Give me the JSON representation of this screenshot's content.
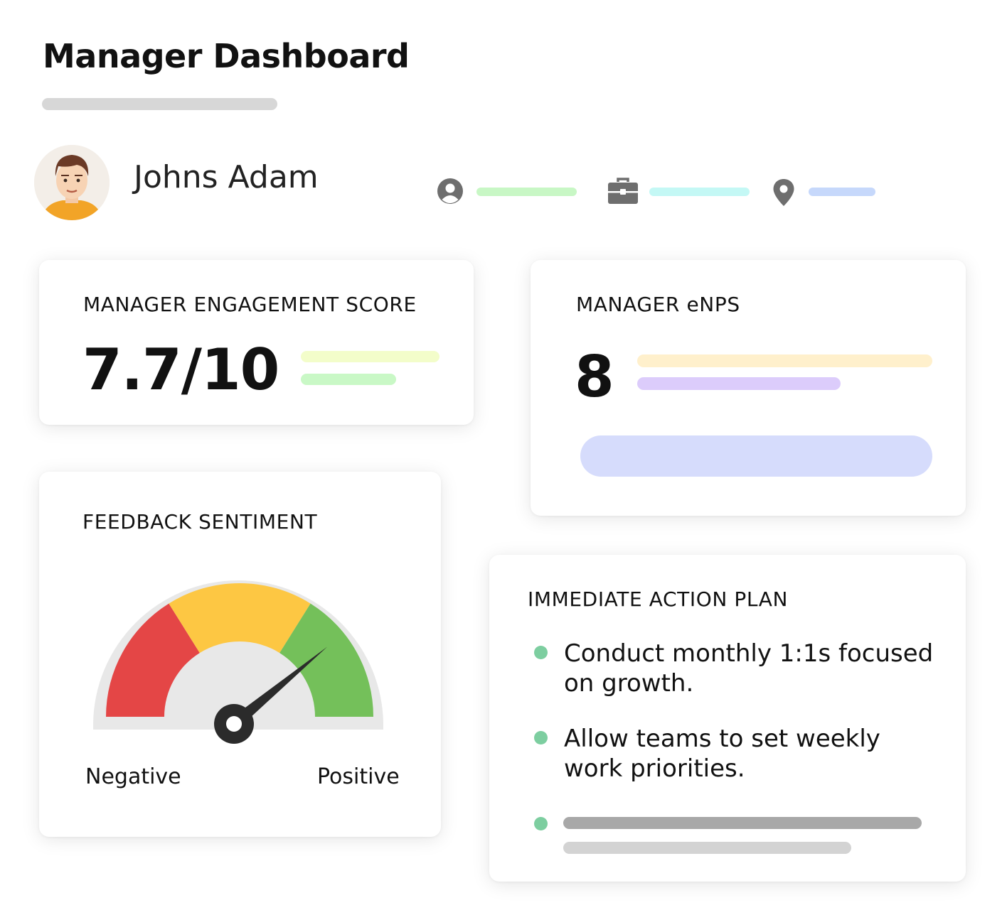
{
  "header": {
    "title": "Manager Dashboard"
  },
  "profile": {
    "name": "Johns Adam",
    "meta_icons": [
      "user-circle-icon",
      "briefcase-icon",
      "map-pin-icon"
    ]
  },
  "engagement": {
    "title": "MANAGER ENGAGEMENT SCORE",
    "score": "7.7/10"
  },
  "enps": {
    "title": "MANAGER eNPS",
    "score": "8"
  },
  "sentiment": {
    "title": "FEEDBACK SENTIMENT",
    "negative_label": "Negative",
    "positive_label": "Positive",
    "level": 0.78,
    "zone_colors": [
      "#e44646",
      "#fdc743",
      "#74c05a"
    ]
  },
  "action_plan": {
    "title": "IMMEDIATE ACTION PLAN",
    "items": [
      "Conduct monthly 1:1s focused on growth.",
      "Allow teams to set weekly work priorities."
    ]
  },
  "colors": {
    "bullet": "#7dcea0",
    "needle": "#2b2b2b"
  }
}
